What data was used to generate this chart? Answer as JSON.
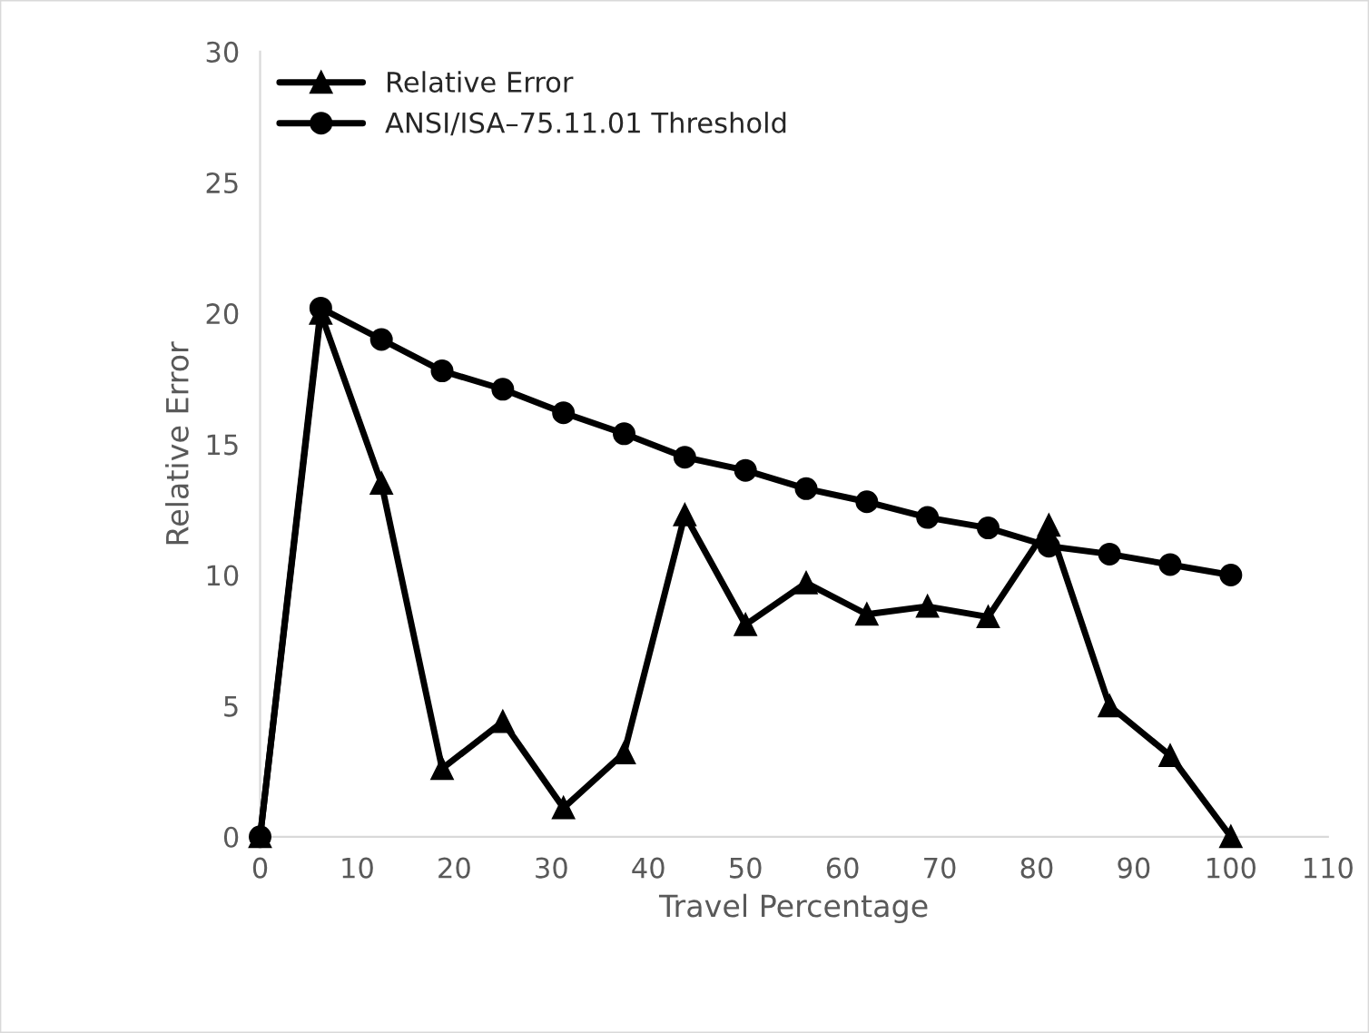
{
  "chart_data": {
    "type": "line",
    "xlabel": "Travel Percentage",
    "ylabel": "Relative Error",
    "x": [
      0,
      6.25,
      12.5,
      18.75,
      25,
      31.25,
      37.5,
      43.75,
      50,
      56.25,
      62.5,
      68.75,
      75,
      81.25,
      87.5,
      93.75,
      100
    ],
    "series": [
      {
        "name": "Relative Error",
        "color": "#000000",
        "marker": "triangle",
        "values": [
          0,
          20,
          13.5,
          2.6,
          4.4,
          1.1,
          3.2,
          12.3,
          8.1,
          9.7,
          8.5,
          8.8,
          8.4,
          11.9,
          5.0,
          3.1,
          0
        ]
      },
      {
        "name": "ANSI/ISA–75.11.01 Threshold",
        "color": "#000000",
        "marker": "circle",
        "values": [
          0,
          20.2,
          19.0,
          17.8,
          17.1,
          16.2,
          15.4,
          14.5,
          14.0,
          13.3,
          12.8,
          12.2,
          11.8,
          11.1,
          10.8,
          10.4,
          10.0
        ]
      }
    ],
    "xlim": [
      0,
      110
    ],
    "xticks": [
      0,
      10,
      20,
      30,
      40,
      50,
      60,
      70,
      80,
      90,
      100,
      110
    ],
    "ylim": [
      0,
      30
    ],
    "yticks": [
      0,
      5,
      10,
      15,
      20,
      25,
      30
    ],
    "grid": false,
    "legend": "top left",
    "line_style": "solid"
  }
}
